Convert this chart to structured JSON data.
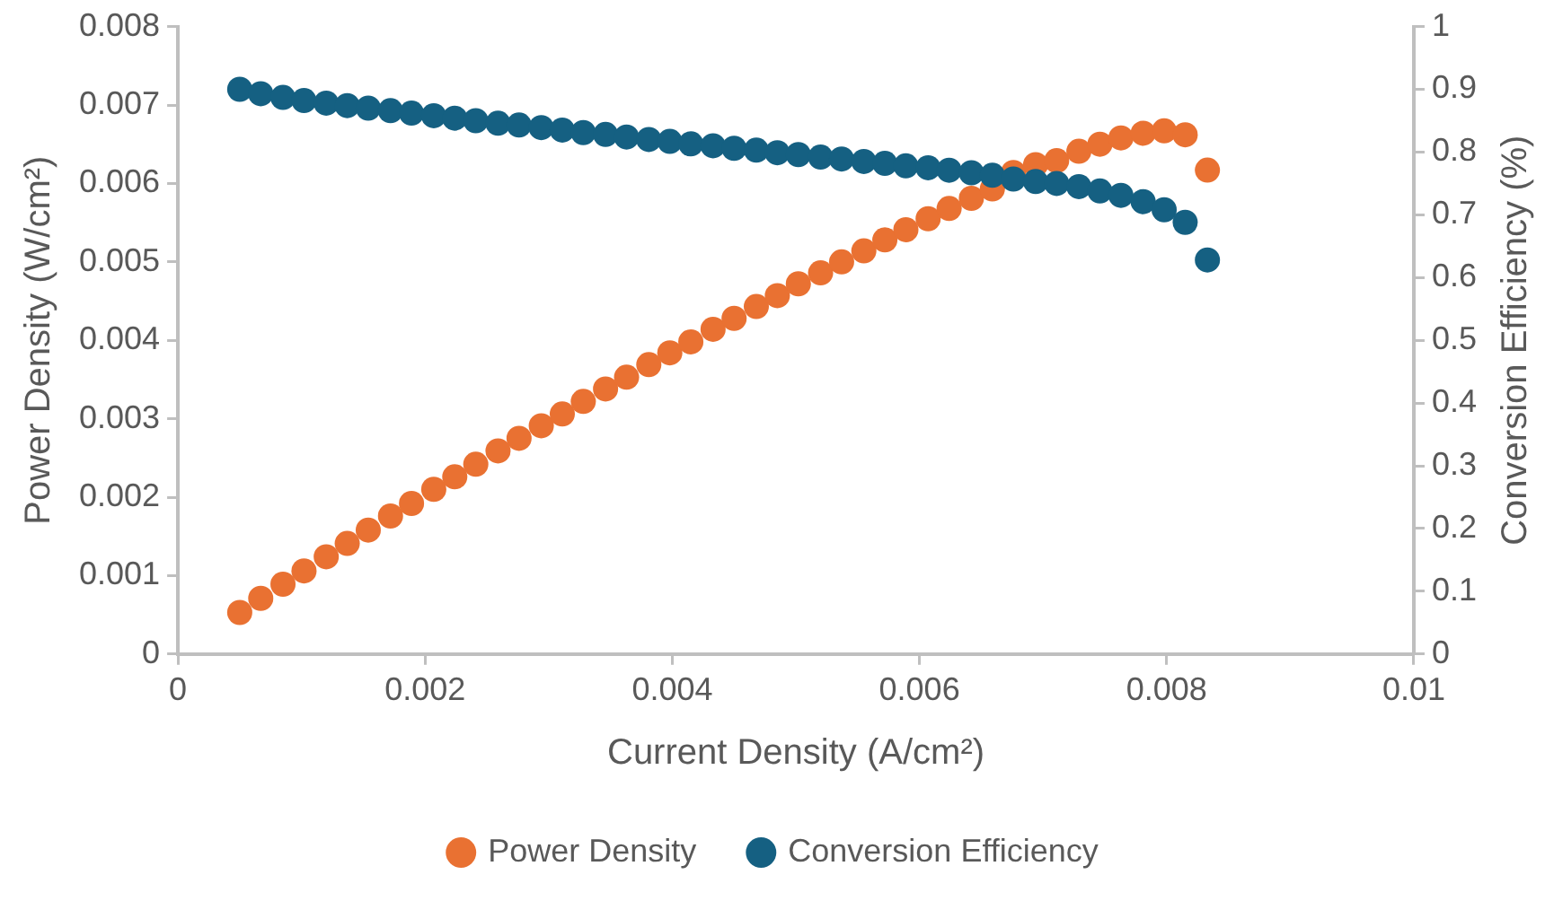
{
  "chart_data": {
    "type": "scatter",
    "xlabel": "Current Density (A/cm²)",
    "ylabel": "Power Density (W/cm²)",
    "y2label": "Conversion Efficiency (%)",
    "x": [
      0.0005,
      0.00067,
      0.00085,
      0.00102,
      0.0012,
      0.00137,
      0.00154,
      0.00172,
      0.00189,
      0.00207,
      0.00224,
      0.00241,
      0.00259,
      0.00276,
      0.00294,
      0.00311,
      0.00328,
      0.00346,
      0.00363,
      0.00381,
      0.00398,
      0.00415,
      0.00433,
      0.0045,
      0.00468,
      0.00485,
      0.00502,
      0.0052,
      0.00537,
      0.00555,
      0.00572,
      0.00589,
      0.00607,
      0.00624,
      0.00642,
      0.00659,
      0.00676,
      0.00694,
      0.00711,
      0.00729,
      0.00746,
      0.00763,
      0.00781,
      0.00798,
      0.00815,
      0.00833
    ],
    "series": [
      {
        "name": "Power Density",
        "color": "#e97132",
        "values": [
          0.00053,
          0.00071,
          0.00089,
          0.00106,
          0.00124,
          0.00141,
          0.00158,
          0.00176,
          0.00192,
          0.0021,
          0.00226,
          0.00242,
          0.00259,
          0.00275,
          0.00291,
          0.00306,
          0.00322,
          0.00338,
          0.00353,
          0.00369,
          0.00384,
          0.00398,
          0.00414,
          0.00428,
          0.00443,
          0.00457,
          0.00472,
          0.00486,
          0.005,
          0.00514,
          0.00528,
          0.00541,
          0.00555,
          0.00568,
          0.00581,
          0.00593,
          0.00614,
          0.00624,
          0.00629,
          0.00641,
          0.0065,
          0.00658,
          0.00664,
          0.00667,
          0.00662,
          0.00617
        ]
      },
      {
        "name": "Conversion Efficiency",
        "color": "#156082",
        "axis": "y2",
        "values": [
          0.9,
          0.893,
          0.887,
          0.882,
          0.878,
          0.874,
          0.87,
          0.866,
          0.862,
          0.858,
          0.854,
          0.85,
          0.846,
          0.843,
          0.839,
          0.835,
          0.831,
          0.828,
          0.824,
          0.82,
          0.817,
          0.813,
          0.81,
          0.806,
          0.803,
          0.799,
          0.796,
          0.792,
          0.789,
          0.785,
          0.782,
          0.778,
          0.775,
          0.771,
          0.767,
          0.763,
          0.757,
          0.753,
          0.75,
          0.745,
          0.738,
          0.731,
          0.721,
          0.708,
          0.688,
          0.628
        ]
      }
    ],
    "xlim": [
      0,
      0.01
    ],
    "xticks": [
      0,
      0.002,
      0.004,
      0.006,
      0.008,
      0.01
    ],
    "ylim": [
      0,
      0.008
    ],
    "yticks": [
      0,
      0.001,
      0.002,
      0.003,
      0.004,
      0.005,
      0.006,
      0.007,
      0.008
    ],
    "y2lim": [
      0,
      1
    ],
    "y2ticks": [
      0,
      0.1,
      0.2,
      0.3,
      0.4,
      0.5,
      0.6,
      0.7,
      0.8,
      0.9,
      1
    ],
    "grid": false,
    "legend": "bottom",
    "marker": "circle"
  }
}
